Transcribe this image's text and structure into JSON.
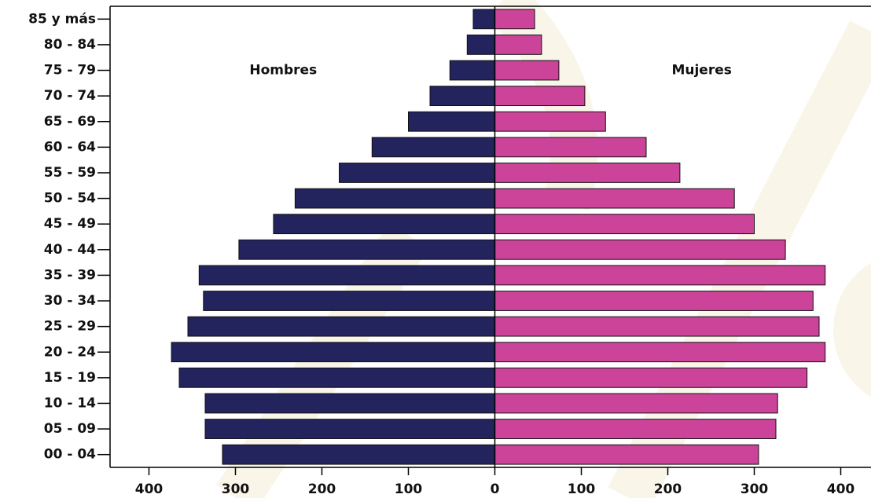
{
  "chart_data": {
    "type": "bar",
    "orientation": "horizontal",
    "categories": [
      "00 - 04",
      "05 - 09",
      "10 - 14",
      "15 - 19",
      "20 - 24",
      "25 - 29",
      "30 - 34",
      "35 - 39",
      "40 - 44",
      "45 - 49",
      "50 - 54",
      "55 - 59",
      "60 - 64",
      "65 - 69",
      "70 - 74",
      "75 - 79",
      "80 - 84",
      "85 y más"
    ],
    "series": [
      {
        "name": "Hombres",
        "color": "#23235e",
        "values": [
          -315,
          -335,
          -335,
          -365,
          -374,
          -355,
          -337,
          -342,
          -296,
          -256,
          -231,
          -180,
          -142,
          -100,
          -75,
          -52,
          -32,
          -25
        ]
      },
      {
        "name": "Mujeres",
        "color": "#cc4499",
        "values": [
          305,
          325,
          327,
          361,
          382,
          375,
          368,
          382,
          336,
          300,
          277,
          214,
          175,
          128,
          104,
          74,
          54,
          46
        ]
      }
    ],
    "xlim": [
      -445,
      435
    ],
    "xticks": [
      {
        "value": -400,
        "label": "400"
      },
      {
        "value": -300,
        "label": "300"
      },
      {
        "value": -200,
        "label": "200"
      },
      {
        "value": -100,
        "label": "100"
      },
      0,
      100,
      200,
      300,
      400
    ]
  }
}
